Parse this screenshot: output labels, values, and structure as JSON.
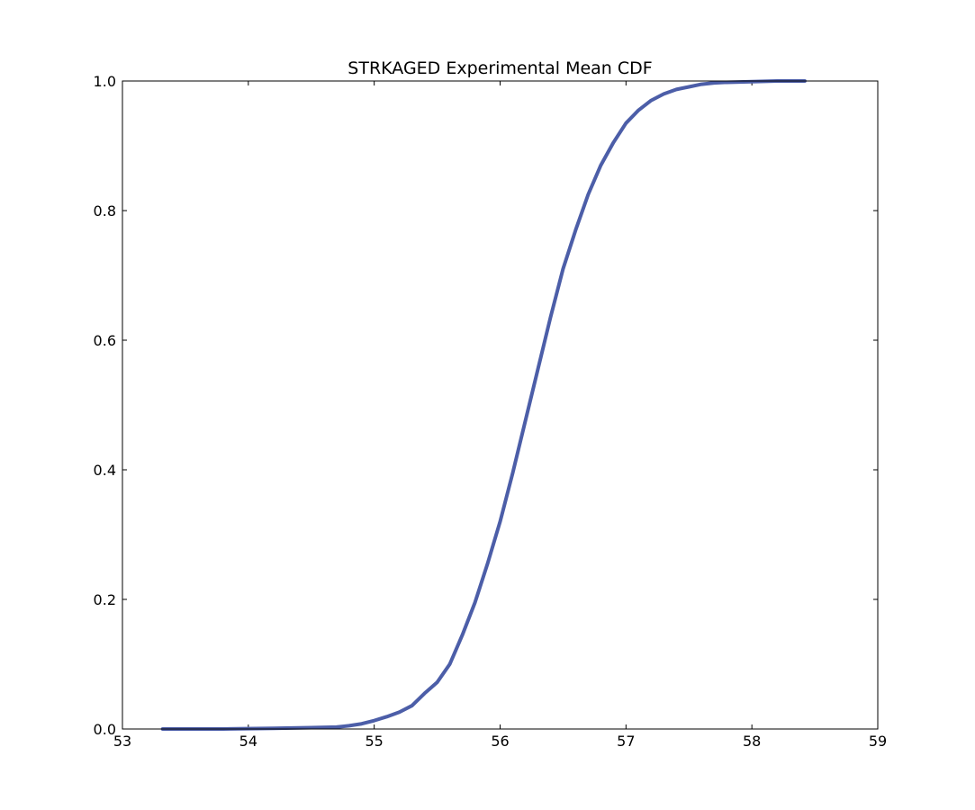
{
  "chart_data": {
    "type": "line",
    "title": "STRKAGED Experimental Mean CDF",
    "xlabel": "",
    "ylabel": "",
    "xlim": [
      53,
      59
    ],
    "ylim": [
      0.0,
      1.0
    ],
    "x_ticks": [
      "53",
      "54",
      "55",
      "56",
      "57",
      "58",
      "59"
    ],
    "y_ticks": [
      "0.0",
      "0.2",
      "0.4",
      "0.6",
      "0.8",
      "1.0"
    ],
    "grid": false,
    "legend": "none",
    "series": [
      {
        "color": "#4c5ea8",
        "x": [
          53.32,
          53.8,
          54.2,
          54.5,
          54.7,
          54.8,
          54.9,
          55.0,
          55.1,
          55.2,
          55.3,
          55.4,
          55.5,
          55.6,
          55.7,
          55.8,
          55.9,
          56.0,
          56.1,
          56.2,
          56.3,
          56.4,
          56.5,
          56.6,
          56.7,
          56.8,
          56.9,
          57.0,
          57.1,
          57.2,
          57.3,
          57.4,
          57.5,
          57.6,
          57.7,
          57.8,
          58.0,
          58.2,
          58.42
        ],
        "y": [
          0.0,
          0.0,
          0.001,
          0.002,
          0.003,
          0.005,
          0.008,
          0.013,
          0.019,
          0.026,
          0.036,
          0.055,
          0.072,
          0.1,
          0.145,
          0.195,
          0.255,
          0.32,
          0.395,
          0.475,
          0.555,
          0.635,
          0.71,
          0.77,
          0.825,
          0.87,
          0.905,
          0.935,
          0.955,
          0.97,
          0.98,
          0.987,
          0.991,
          0.995,
          0.997,
          0.998,
          0.999,
          1.0,
          1.0
        ]
      }
    ]
  }
}
